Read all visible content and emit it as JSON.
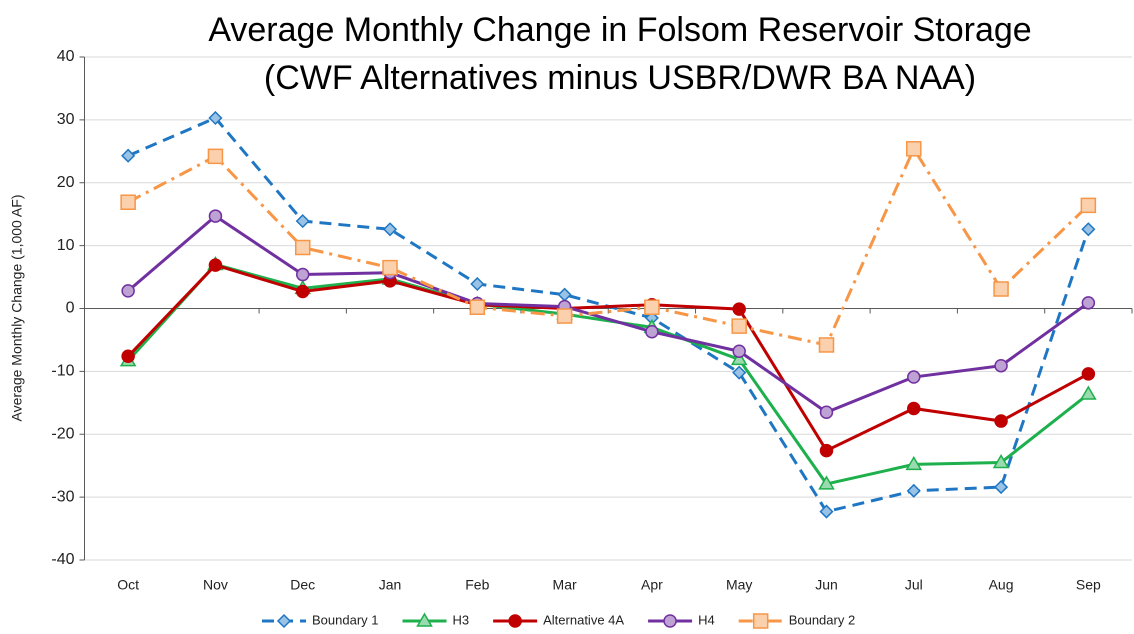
{
  "chart_data": {
    "type": "line",
    "title": "Average Monthly Change in Folsom Reservoir Storage",
    "subtitle": "(CWF Alternatives minus USBR/DWR BA NAA)",
    "y_label": "Average Monthly Change (1,000 AF)",
    "categories": [
      "Oct",
      "Nov",
      "Dec",
      "Jan",
      "Feb",
      "Mar",
      "Apr",
      "May",
      "Jun",
      "Jul",
      "Aug",
      "Sep"
    ],
    "ylim": [
      -40,
      40
    ],
    "yticks": [
      -40,
      -30,
      -20,
      -10,
      0,
      10,
      20,
      30,
      40
    ],
    "grid": true,
    "legend": "bottom",
    "series": [
      {
        "name": "Boundary 1",
        "color": "#1f77c4",
        "marker": "diamond",
        "dash": "dash",
        "values": [
          24.3,
          30.3,
          13.9,
          12.6,
          3.9,
          2.2,
          -1.5,
          -10.2,
          -32.3,
          -29.0,
          -28.4,
          12.6
        ]
      },
      {
        "name": "H3",
        "color": "#1db04c",
        "marker": "triangle",
        "dash": "solid",
        "values": [
          -8.3,
          7.0,
          3.2,
          4.7,
          0.7,
          -0.9,
          -3.0,
          -8.1,
          -27.9,
          -24.8,
          -24.5,
          -13.6
        ]
      },
      {
        "name": "Alternative 4A",
        "color": "#c00000",
        "marker": "circle",
        "dash": "solid",
        "values": [
          -7.6,
          6.9,
          2.7,
          4.4,
          0.6,
          0.0,
          0.6,
          -0.1,
          -22.6,
          -15.9,
          -17.9,
          -10.4
        ]
      },
      {
        "name": "H4",
        "color": "#7030a0",
        "marker": "circle",
        "dash": "solid",
        "values": [
          2.8,
          14.7,
          5.4,
          5.7,
          0.8,
          0.3,
          -3.7,
          -6.8,
          -16.5,
          -10.9,
          -9.1,
          0.9
        ]
      },
      {
        "name": "Boundary 2",
        "color": "#f79646",
        "marker": "square",
        "dash": "dashdot",
        "values": [
          16.9,
          24.2,
          9.7,
          6.5,
          0.2,
          -1.2,
          0.2,
          -2.8,
          -5.8,
          25.4,
          3.1,
          16.4
        ]
      }
    ]
  }
}
